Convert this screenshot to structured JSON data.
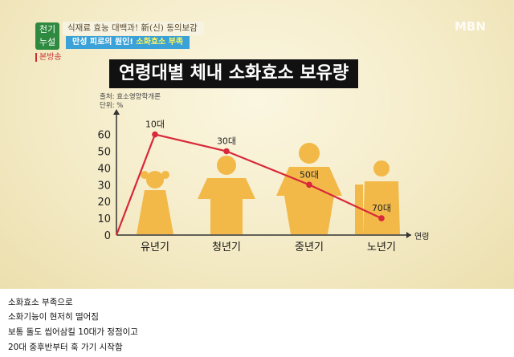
{
  "overlay": {
    "logo_line1": "천기",
    "logo_line2": "누설",
    "top_banner": "식재료 효능 대백과! 新(신) 동의보감",
    "sub_banner_prefix": "만성 피로의 원인!",
    "sub_banner_highlight": "소화효소 부족",
    "rebroadcast": "본방송",
    "channel": "MBN"
  },
  "chart_data": {
    "type": "line",
    "title": "연령대별 체내 소화효소 보유량",
    "source": "출처: 효소영양학개론",
    "unit": "단위: %",
    "xlabel": "연령",
    "ylabel": "",
    "categories": [
      "유년기",
      "청년기",
      "중년기",
      "노년기"
    ],
    "x": [
      0,
      "유년기",
      "청년기",
      "중년기",
      "노년기"
    ],
    "values": [
      0,
      60,
      50,
      30,
      10
    ],
    "point_labels": [
      "",
      "10대",
      "30대",
      "50대",
      "70대"
    ],
    "yticks": [
      0,
      10,
      20,
      30,
      40,
      50,
      60
    ],
    "ylim": [
      0,
      70
    ],
    "line_color": "#d8283a",
    "figure_color": "#f2b949",
    "grid": false
  },
  "captions": [
    "소화효소 부족으로",
    "소화기능이 현저히 떨어짐",
    "보통 돌도 씹어삼킬 10대가 정점이고",
    "20대 중후반부터 훅 가기 시작함"
  ]
}
